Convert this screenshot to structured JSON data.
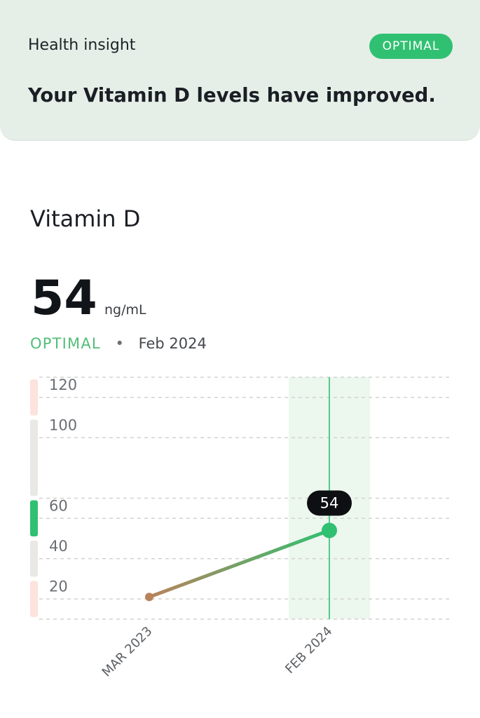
{
  "insight": {
    "label": "Health insight",
    "badge": "OPTIMAL",
    "message": "Your Vitamin D levels have improved."
  },
  "metric": {
    "title": "Vitamin D",
    "value": "54",
    "unit": "ng/mL",
    "status": "OPTIMAL",
    "separator": "•",
    "date": "Feb 2024"
  },
  "colors": {
    "insight_background": "#e5efe8",
    "optimal_green": "#30c071",
    "status_text_green": "#53bd78",
    "low_start_brown": "#b9825a",
    "range_low_high": "#fde3dc",
    "range_normal": "#e9e8e4",
    "selection_band": "#ecf7ee"
  },
  "chart_data": {
    "type": "line",
    "x": [
      "MAR 2023",
      "FEB 2024"
    ],
    "series": [
      {
        "values": [
          21,
          54
        ]
      }
    ],
    "y_ticks": [
      20,
      40,
      60,
      100,
      120
    ],
    "y_range": [
      10,
      130
    ],
    "ranges": [
      {
        "from": 10,
        "to": 30,
        "category": "low"
      },
      {
        "from": 30,
        "to": 50,
        "category": "neutral"
      },
      {
        "from": 50,
        "to": 70,
        "category": "optimal"
      },
      {
        "from": 70,
        "to": 110,
        "category": "neutral"
      },
      {
        "from": 110,
        "to": 130,
        "category": "high"
      }
    ],
    "selected_index": 1,
    "selected_label": "54",
    "grid": true
  }
}
